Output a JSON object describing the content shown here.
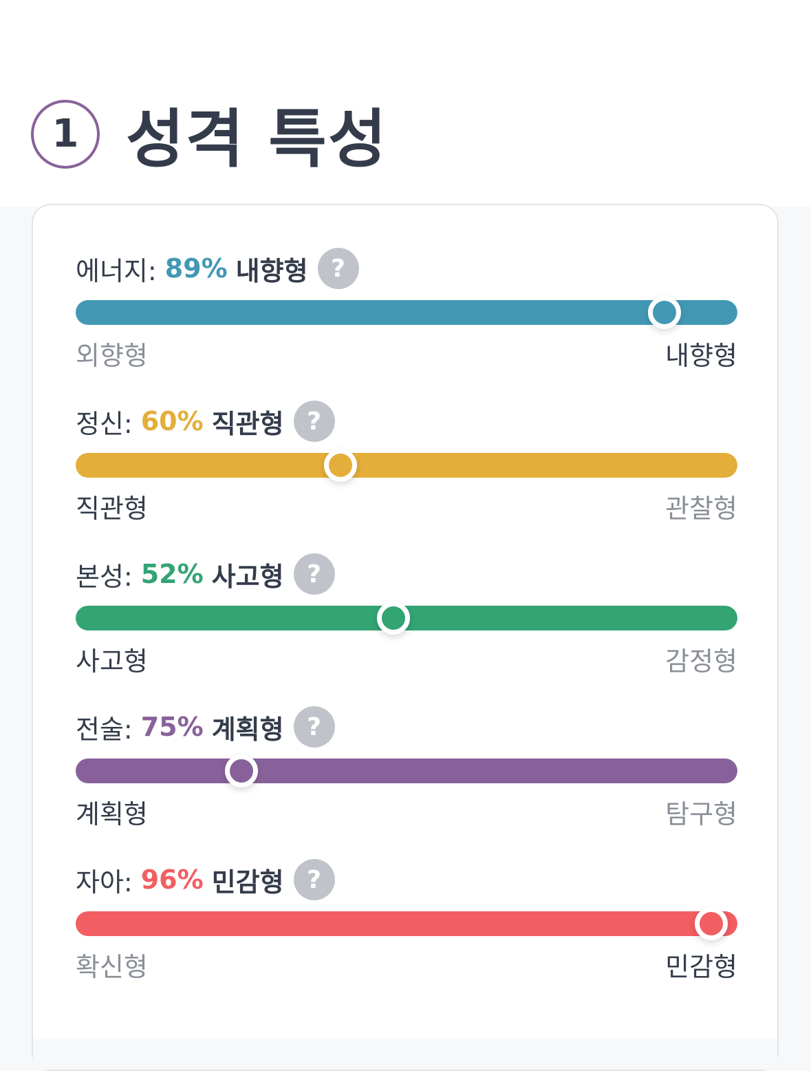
{
  "section": {
    "number": "1",
    "title": "성격 특성"
  },
  "traits": [
    {
      "label": "에너지:",
      "percent": "89%",
      "result": "내향형",
      "left": "외향형",
      "right": "내향형",
      "selected": "right",
      "marker_position": 89,
      "color": "#4298b4"
    },
    {
      "label": "정신:",
      "percent": "60%",
      "result": "직관형",
      "left": "직관형",
      "right": "관찰형",
      "selected": "left",
      "marker_position": 40,
      "color": "#e4ae3a"
    },
    {
      "label": "본성:",
      "percent": "52%",
      "result": "사고형",
      "left": "사고형",
      "right": "감정형",
      "selected": "left",
      "marker_position": 48,
      "color": "#33a474"
    },
    {
      "label": "전술:",
      "percent": "75%",
      "result": "계획형",
      "left": "계획형",
      "right": "탐구형",
      "selected": "left",
      "marker_position": 25,
      "color": "#88619a"
    },
    {
      "label": "자아:",
      "percent": "96%",
      "result": "민감형",
      "left": "확신형",
      "right": "민감형",
      "selected": "right",
      "marker_position": 96,
      "color": "#f25e62"
    }
  ],
  "help_glyph": "?"
}
